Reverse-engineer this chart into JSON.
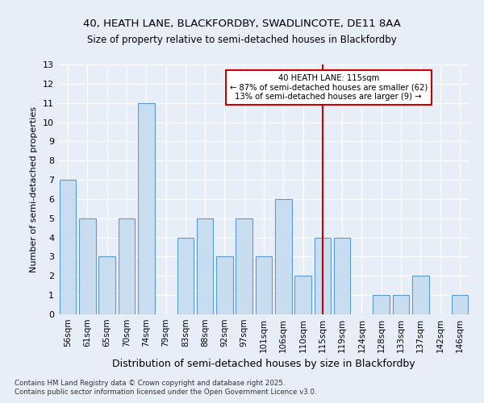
{
  "title1": "40, HEATH LANE, BLACKFORDBY, SWADLINCOTE, DE11 8AA",
  "title2": "Size of property relative to semi-detached houses in Blackfordby",
  "xlabel": "Distribution of semi-detached houses by size in Blackfordby",
  "ylabel": "Number of semi-detached properties",
  "categories": [
    "56sqm",
    "61sqm",
    "65sqm",
    "70sqm",
    "74sqm",
    "79sqm",
    "83sqm",
    "88sqm",
    "92sqm",
    "97sqm",
    "101sqm",
    "106sqm",
    "110sqm",
    "115sqm",
    "119sqm",
    "124sqm",
    "128sqm",
    "133sqm",
    "137sqm",
    "142sqm",
    "146sqm"
  ],
  "values": [
    7,
    5,
    3,
    5,
    11,
    0,
    4,
    5,
    3,
    5,
    3,
    6,
    2,
    4,
    4,
    0,
    1,
    1,
    2,
    0,
    1
  ],
  "bar_color": "#c9ddf0",
  "bar_edge_color": "#5b9bd5",
  "reference_line_index": 13,
  "reference_label": "40 HEATH LANE: 115sqm",
  "pct_smaller": "87% of semi-detached houses are smaller (62)",
  "pct_larger": "13% of semi-detached houses are larger (9)",
  "annotation_box_color": "#ffffff",
  "annotation_box_edge": "#cc0000",
  "reference_line_color": "#cc0000",
  "ylim": [
    0,
    13
  ],
  "yticks": [
    0,
    1,
    2,
    3,
    4,
    5,
    6,
    7,
    8,
    9,
    10,
    11,
    12,
    13
  ],
  "background_color": "#e8eef8",
  "footer1": "Contains HM Land Registry data © Crown copyright and database right 2025.",
  "footer2": "Contains public sector information licensed under the Open Government Licence v3.0."
}
